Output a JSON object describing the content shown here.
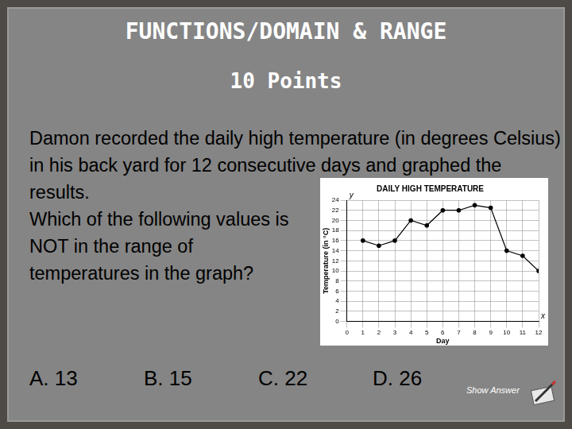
{
  "slide": {
    "title": "FUNCTIONS/DOMAIN & RANGE",
    "points": "10 Points",
    "question": [
      "Damon recorded the daily high temperature (in degrees Celsius) in his back yard for 12 consecutive days and graphed the results.",
      "Which of the following values is NOT in the range of temperatures in the graph?"
    ],
    "choices": [
      "A.  13",
      "B.  15",
      "C.  22",
      "D.  26"
    ],
    "button": "Show Answer"
  },
  "chart_data": {
    "type": "line",
    "title": "DAILY HIGH TEMPERATURE",
    "x_label": "Day",
    "y_label": "Temperature (in °C)",
    "annotations": [
      "y",
      "x"
    ],
    "x": [
      1,
      2,
      3,
      4,
      5,
      6,
      7,
      8,
      9,
      10,
      11,
      12
    ],
    "values": [
      16,
      15,
      16,
      20,
      19,
      22,
      22,
      23,
      22.5,
      14,
      13,
      10
    ],
    "color": "#000000",
    "marker": "circle",
    "line_style": "solid",
    "xlim": [
      0,
      12
    ],
    "xticks": [
      0,
      1,
      2,
      3,
      4,
      5,
      6,
      7,
      8,
      9,
      10,
      11,
      12
    ],
    "ylim": [
      0,
      24
    ],
    "yticks": [
      0,
      2,
      4,
      6,
      8,
      10,
      12,
      14,
      16,
      18,
      20,
      22,
      24
    ],
    "grid": true
  }
}
